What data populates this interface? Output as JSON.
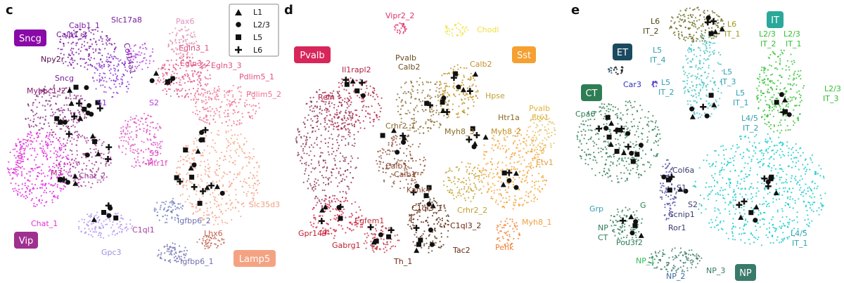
{
  "chart_data": [
    {
      "panel": "c",
      "type": "scatter",
      "title": "",
      "legend": {
        "placement": "top-right",
        "entries": [
          {
            "name": "L1",
            "marker": "triangle"
          },
          {
            "name": "L2/3",
            "marker": "circle"
          },
          {
            "name": "L5",
            "marker": "square"
          },
          {
            "name": "L6",
            "marker": "plus"
          }
        ]
      },
      "groups": [
        {
          "name": "Sncg",
          "color": "#8a0aa8"
        },
        {
          "name": "Vip",
          "color": "#a0308f"
        },
        {
          "name": "Lamp5",
          "color": "#f4a382"
        }
      ],
      "cluster_labels": [
        {
          "text": "Calb1_1",
          "color": "#7a1aa0"
        },
        {
          "text": "Slc17a8",
          "color": "#7a1aa0"
        },
        {
          "text": "Calb1_2",
          "color": "#7a1aa0"
        },
        {
          "text": "Npy2r",
          "color": "#5a1050"
        },
        {
          "text": "Sncg",
          "color": "#7a1aa0"
        },
        {
          "text": "Col14a1",
          "color": "#7a1aa0"
        },
        {
          "text": "Mybpc1_2",
          "color": "#8a1a70"
        },
        {
          "text": "S1",
          "color": "#8a30d0"
        },
        {
          "text": "S2",
          "color": "#b040e0"
        },
        {
          "text": "S3",
          "color": "#e040c0"
        },
        {
          "text": "Htr1f",
          "color": "#e040c0"
        },
        {
          "text": "Mybpc1_1",
          "color": "#e030d0"
        },
        {
          "text": "M3",
          "color": "#b02090"
        },
        {
          "text": "Chat_2",
          "color": "#a040a0"
        },
        {
          "text": "Chat_1",
          "color": "#e030d0"
        },
        {
          "text": "C1ql1",
          "color": "#a040a0"
        },
        {
          "text": "Gpc3",
          "color": "#a090e0"
        },
        {
          "text": "Igfbp6_2",
          "color": "#7070b0"
        },
        {
          "text": "Igfbp6_1",
          "color": "#7070b0"
        },
        {
          "text": "Lhx6",
          "color": "#c06050"
        },
        {
          "text": "Pax6",
          "color": "#e090c0"
        },
        {
          "text": "Egln3_1",
          "color": "#e05080"
        },
        {
          "text": "Egln3_2",
          "color": "#e05080"
        },
        {
          "text": "Egln3_3",
          "color": "#e05080"
        },
        {
          "text": "Pdlim5_1",
          "color": "#e05080"
        },
        {
          "text": "Pdlim5_2",
          "color": "#f07090"
        },
        {
          "text": "Slc35d3",
          "color": "#f0a080"
        }
      ]
    },
    {
      "panel": "d",
      "type": "scatter",
      "title": "",
      "groups": [
        {
          "name": "Pvalb",
          "color": "#d8265a"
        },
        {
          "name": "Sst",
          "color": "#f5a030"
        }
      ],
      "cluster_labels": [
        {
          "text": "Vipr2_2",
          "color": "#e0306a"
        },
        {
          "text": "Chodl",
          "color": "#f0e040"
        },
        {
          "text": "Il1rapl2",
          "color": "#b02040"
        },
        {
          "text": "Pvalb",
          "color": "#6a4a20"
        },
        {
          "text": "Calb2",
          "color": "#6a4a20"
        },
        {
          "text": "Calb2",
          "color": "#c0902a"
        },
        {
          "text": "Reln",
          "color": "#b02040"
        },
        {
          "text": "Hpse",
          "color": "#c0a030"
        },
        {
          "text": "Htr1a",
          "color": "#8a6a20"
        },
        {
          "text": "Pvalb",
          "color": "#e0b040"
        },
        {
          "text": "Etv1",
          "color": "#e0b040"
        },
        {
          "text": "Crhr2_1",
          "color": "#8a6a30"
        },
        {
          "text": "Myh8_3",
          "color": "#8a6a20"
        },
        {
          "text": "Myh8_2",
          "color": "#c09020"
        },
        {
          "text": "Calb1",
          "color": "#8a4a30"
        },
        {
          "text": "Calb1",
          "color": "#8a4a30"
        },
        {
          "text": "Etv1",
          "color": "#e0a040"
        },
        {
          "text": "Kank4",
          "color": "#8a4a30"
        },
        {
          "text": "C1ql3_1",
          "color": "#6a2a10"
        },
        {
          "text": "Egfem1",
          "color": "#c03040"
        },
        {
          "text": "3",
          "color": "#6a2a10"
        },
        {
          "text": "Crhr2_2",
          "color": "#c0a030"
        },
        {
          "text": "C1ql3_2",
          "color": "#6a2a10"
        },
        {
          "text": "Gpr149",
          "color": "#c02030"
        },
        {
          "text": "Gabrg1",
          "color": "#c02030"
        },
        {
          "text": "Th_1",
          "color": "#6a2a10"
        },
        {
          "text": "Tac2",
          "color": "#6a2a10"
        },
        {
          "text": "Penk",
          "color": "#f08030"
        },
        {
          "text": "Myh8_1",
          "color": "#f0a040"
        }
      ]
    },
    {
      "panel": "e",
      "type": "scatter",
      "title": "",
      "groups": [
        {
          "name": "ET",
          "color": "#1a4a60"
        },
        {
          "name": "IT",
          "color": "#2aa89a"
        },
        {
          "name": "CT",
          "color": "#2e7d55"
        },
        {
          "name": "NP",
          "color": "#3a7a6a"
        }
      ],
      "cluster_labels": [
        {
          "text": "L6",
          "color": "#4a4a10"
        },
        {
          "text": "IT_2",
          "color": "#4a4a10"
        },
        {
          "text": "L6",
          "color": "#a09a20"
        },
        {
          "text": "IT_1",
          "color": "#a09a20"
        },
        {
          "text": "L2/3",
          "color": "#30c030"
        },
        {
          "text": "L2/3",
          "color": "#30c030"
        },
        {
          "text": "IT_2",
          "color": "#30c030"
        },
        {
          "text": "IT_1",
          "color": "#30c030"
        },
        {
          "text": "L5",
          "color": "#30a0b0"
        },
        {
          "text": "IT_4",
          "color": "#30a0b0"
        },
        {
          "text": "L5",
          "color": "#30a0b0"
        },
        {
          "text": "IT_3",
          "color": "#30a0b0"
        },
        {
          "text": "L5",
          "color": "#30a0b0"
        },
        {
          "text": "IT_2",
          "color": "#30a0b0"
        },
        {
          "text": "L5",
          "color": "#30a0b0"
        },
        {
          "text": "IT_1",
          "color": "#30a0b0"
        },
        {
          "text": "Car3",
          "color": "#3030c0"
        },
        {
          "text": "L2/3",
          "color": "#30c030"
        },
        {
          "text": "IT_3",
          "color": "#30c030"
        },
        {
          "text": "Cpa6",
          "color": "#2e7d55"
        },
        {
          "text": "L4/5",
          "color": "#30a0b0"
        },
        {
          "text": "IT_2",
          "color": "#30a0b0"
        },
        {
          "text": "Col6a",
          "color": "#3a3a70"
        },
        {
          "text": "S1",
          "color": "#3a3a70"
        },
        {
          "text": "S2",
          "color": "#3a3a70"
        },
        {
          "text": "Grp",
          "color": "#30a0b0"
        },
        {
          "text": "G",
          "color": "#2e7d55"
        },
        {
          "text": "Ccnip1",
          "color": "#3a3a70"
        },
        {
          "text": "NP",
          "color": "#2e7d55"
        },
        {
          "text": "CT",
          "color": "#2e7d55"
        },
        {
          "text": "Pou3f2",
          "color": "#2e7d55"
        },
        {
          "text": "Ror1",
          "color": "#3a3a70"
        },
        {
          "text": "L4/5",
          "color": "#30a0b0"
        },
        {
          "text": "IT_1",
          "color": "#30a0b0"
        },
        {
          "text": "NP_1",
          "color": "#30c050"
        },
        {
          "text": "NP_3",
          "color": "#3a7a6a"
        },
        {
          "text": "NP_2",
          "color": "#3a6aa0"
        }
      ]
    }
  ],
  "panels": [
    {
      "letter": "c"
    },
    {
      "letter": "d"
    },
    {
      "letter": "e"
    }
  ]
}
